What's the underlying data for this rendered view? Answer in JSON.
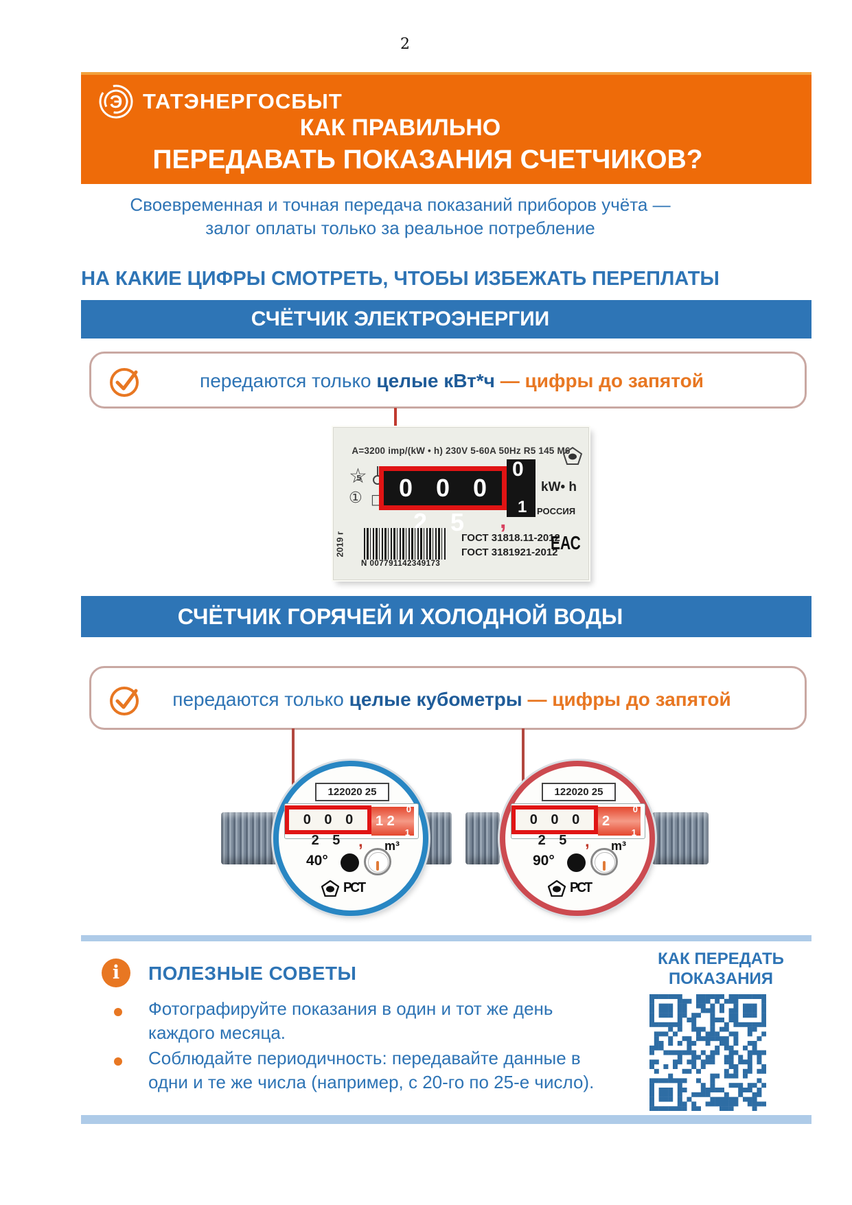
{
  "page": {
    "number": "2"
  },
  "header": {
    "brand": "ТАТЭНЕРГОСБЫТ",
    "logo_letter": "Э",
    "title_line1": "КАК ПРАВИЛЬНО",
    "title_line2": "ПЕРЕДАВАТЬ ПОКАЗАНИЯ СЧЕТЧИКОВ?"
  },
  "intro": {
    "line1": "Своевременная  и точная передача показаний  приборов  учёта —",
    "line2": "залог оплаты только за реальное  потребление",
    "headline": "НА КАКИЕ ЦИФРЫ СМОТРЕТЬ, ЧТОБЫ ИЗБЕЖАТЬ ПЕРЕПЛАТЫ"
  },
  "electric": {
    "banner": "СЧЁТЧИК ЭЛЕКТРОЭНЕРГИИ",
    "rule_prefix": "передаются только ",
    "rule_bold": "целые кВт*ч",
    "rule_dash": " — ",
    "rule_orange": "цифры до запятой",
    "meter": {
      "spec": "A=3200 imp/(kW • h)  230V  5-60A  50Hz  R5 145 M6",
      "digits": "0 0 0 2 5",
      "drum_top": "0",
      "drum_bottom": "1",
      "comma": ",",
      "unit": "kW• h",
      "country": "РОССИЯ",
      "year": "2019 г",
      "serial": "N 007791142349173",
      "gost1": "ГОСТ 31818.11-2012",
      "gost2": "ГОСТ 3181921-2012",
      "eac": "ЕАС",
      "star_glyph": "☆",
      "star_class": "5",
      "circled_one": "①",
      "square_glyph": "□"
    }
  },
  "water": {
    "banner": "СЧЁТЧИК ГОРЯЧЕЙ И ХОЛОДНОЙ ВОДЫ",
    "rule_prefix": "передаются только ",
    "rule_bold": "целые кубометры",
    "rule_dash": " — ",
    "rule_orange": "цифры до запятой",
    "meters": [
      {
        "label": "122020 25",
        "digits": "0 0 0 2 5",
        "red_digits": "1 2",
        "drum_top": "0",
        "drum_bottom": "1",
        "comma": ",",
        "unit": "m³",
        "temp": "40°",
        "cert": "РСТ"
      },
      {
        "label": "122020 25",
        "digits": "0 0 0 2 5",
        "red_digits": "2",
        "drum_top": "0",
        "drum_bottom": "1",
        "comma": ",",
        "unit": "m³",
        "temp": "90°",
        "cert": "РСТ"
      }
    ]
  },
  "tips": {
    "info_glyph": "i",
    "title": "ПОЛЕЗНЫЕ СОВЕТЫ",
    "items": [
      "Фотографируйте показания  в один и тот же день каждого месяца.",
      "Соблюдайте периодичность: передавайте данные в одни и те же числа (например, с 20-го по 25-е число)."
    ],
    "qr_caption_line1": "КАК ПЕРЕДАТЬ",
    "qr_caption_line2": "ПОКАЗАНИЯ"
  },
  "colors": {
    "header_orange": "#EE6B09",
    "banner_blue": "#2E75B6",
    "text_blue": "#2E74B5",
    "accent_orange": "#E87722",
    "red_frame": "#E01414",
    "connector_red": "#B2473F",
    "divider_blue": "#AECBE8",
    "qr_blue": "#2E6DA4",
    "blue_meter_ring": "#2886C3",
    "red_meter_ring": "#CC4A50"
  }
}
